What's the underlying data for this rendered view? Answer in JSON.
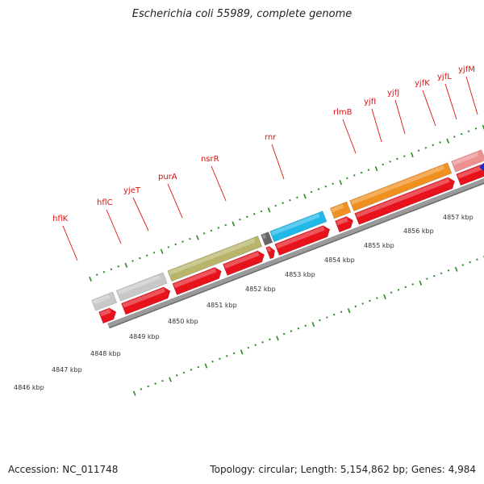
{
  "title": "Escherichia coli 55989, complete genome",
  "footer": {
    "accession": "Accession: NC_011748",
    "topology": "Topology: circular; Length: 5,154,862 bp; Genes: 4,984"
  },
  "colors": {
    "cds": "#e8121c",
    "backbone": "#9a9a9a",
    "tick": "#2a8a20",
    "label": "#dd1111",
    "grey_gene": "#c8c8c8",
    "olive_gene": "#b8b46a",
    "cyan_gene": "#20b8e8",
    "orange_gene": "#f09020",
    "pink_gene": "#ee9090",
    "dark_gene": "#666666",
    "green_gene": "#44bb33"
  },
  "gene_labels": [
    "hflK",
    "hflC",
    "yjeT",
    "purA",
    "nsrR",
    "rnr",
    "rlmB",
    "yjfI",
    "yjfJ",
    "yjfK",
    "yjfL",
    "yjfM"
  ],
  "scale_labels": [
    "4846 kbp",
    "4847 kbp",
    "4848 kbp",
    "4849 kbp",
    "4850 kbp",
    "4851 kbp",
    "4852 kbp",
    "4853 kbp",
    "4854 kbp",
    "4855 kbp",
    "4856 kbp",
    "4857 kbp"
  ]
}
